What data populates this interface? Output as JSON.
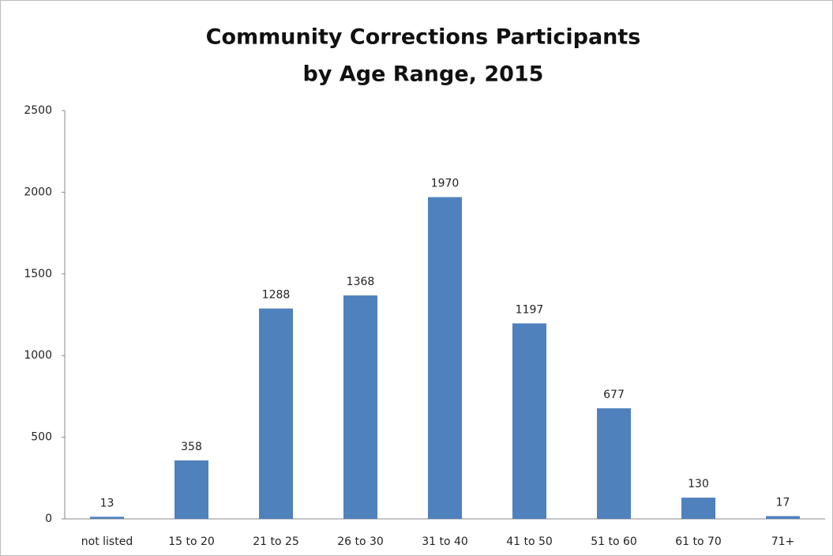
{
  "chart_data": {
    "type": "bar",
    "title": [
      "Community Corrections Participants",
      "by Age Range, 2015"
    ],
    "categories": [
      "not listed",
      "15 to 20",
      "21 to 25",
      "26 to 30",
      "31 to 40",
      "41 to 50",
      "51 to 60",
      "61 to 70",
      "71+"
    ],
    "values": [
      13,
      358,
      1288,
      1368,
      1970,
      1197,
      677,
      130,
      17
    ],
    "color": "#4f81bd",
    "ylim": [
      0,
      2500
    ],
    "yticks": [
      0,
      500,
      1000,
      1500,
      2000,
      2500
    ],
    "grid": false
  }
}
